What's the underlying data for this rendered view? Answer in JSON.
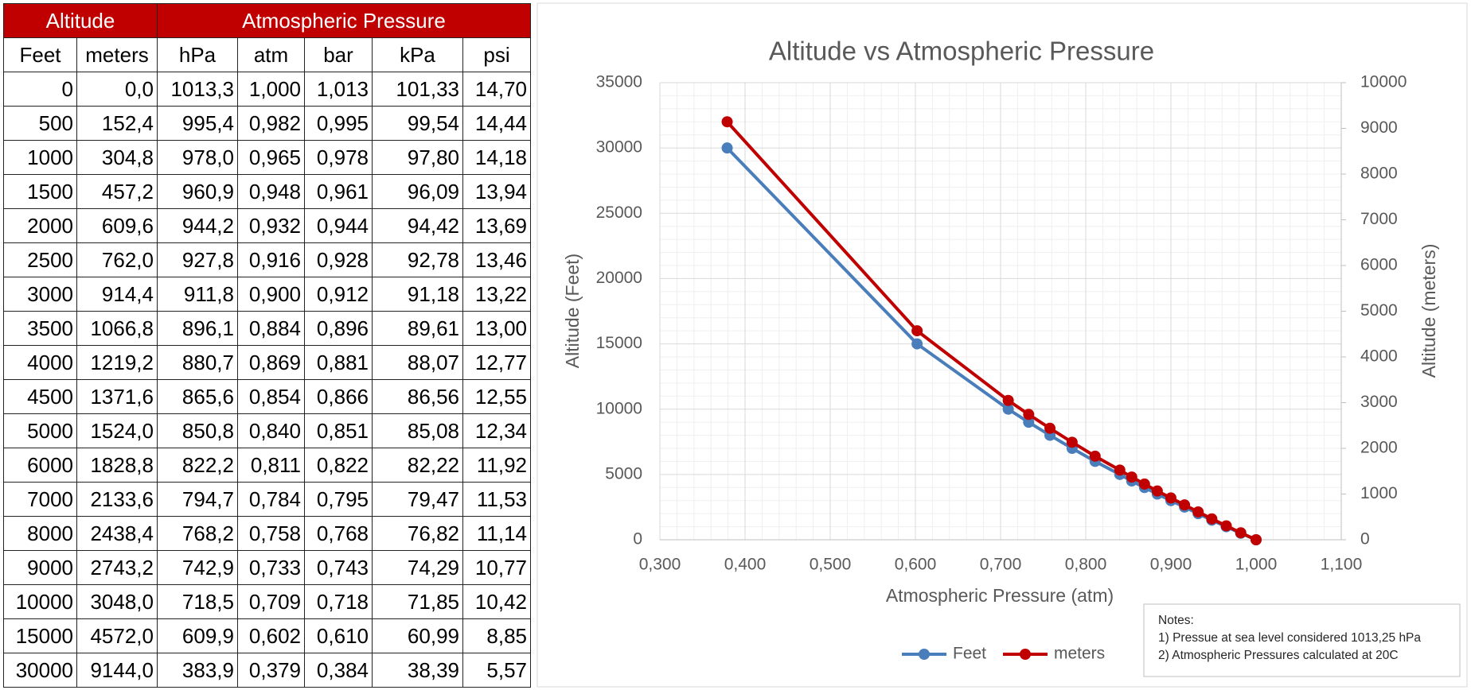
{
  "table": {
    "groups": [
      "Altitude",
      "Atmospheric Pressure"
    ],
    "columns": [
      "Feet",
      "meters",
      "hPa",
      "atm",
      "bar",
      "kPa",
      "psi"
    ],
    "rows": [
      [
        "0",
        "0,0",
        "1013,3",
        "1,000",
        "1,013",
        "101,33",
        "14,70"
      ],
      [
        "500",
        "152,4",
        "995,4",
        "0,982",
        "0,995",
        "99,54",
        "14,44"
      ],
      [
        "1000",
        "304,8",
        "978,0",
        "0,965",
        "0,978",
        "97,80",
        "14,18"
      ],
      [
        "1500",
        "457,2",
        "960,9",
        "0,948",
        "0,961",
        "96,09",
        "13,94"
      ],
      [
        "2000",
        "609,6",
        "944,2",
        "0,932",
        "0,944",
        "94,42",
        "13,69"
      ],
      [
        "2500",
        "762,0",
        "927,8",
        "0,916",
        "0,928",
        "92,78",
        "13,46"
      ],
      [
        "3000",
        "914,4",
        "911,8",
        "0,900",
        "0,912",
        "91,18",
        "13,22"
      ],
      [
        "3500",
        "1066,8",
        "896,1",
        "0,884",
        "0,896",
        "89,61",
        "13,00"
      ],
      [
        "4000",
        "1219,2",
        "880,7",
        "0,869",
        "0,881",
        "88,07",
        "12,77"
      ],
      [
        "4500",
        "1371,6",
        "865,6",
        "0,854",
        "0,866",
        "86,56",
        "12,55"
      ],
      [
        "5000",
        "1524,0",
        "850,8",
        "0,840",
        "0,851",
        "85,08",
        "12,34"
      ],
      [
        "6000",
        "1828,8",
        "822,2",
        "0,811",
        "0,822",
        "82,22",
        "11,92"
      ],
      [
        "7000",
        "2133,6",
        "794,7",
        "0,784",
        "0,795",
        "79,47",
        "11,53"
      ],
      [
        "8000",
        "2438,4",
        "768,2",
        "0,758",
        "0,768",
        "76,82",
        "11,14"
      ],
      [
        "9000",
        "2743,2",
        "742,9",
        "0,733",
        "0,743",
        "74,29",
        "10,77"
      ],
      [
        "10000",
        "3048,0",
        "718,5",
        "0,709",
        "0,718",
        "71,85",
        "10,42"
      ],
      [
        "15000",
        "4572,0",
        "609,9",
        "0,602",
        "0,610",
        "60,99",
        "8,85"
      ],
      [
        "30000",
        "9144,0",
        "383,9",
        "0,379",
        "0,384",
        "38,39",
        "5,57"
      ]
    ]
  },
  "chart_data": {
    "type": "line",
    "title": "Altitude vs Atmospheric Pressure",
    "x_label": "Atmospheric Pressure (atm)",
    "y_label": "Altitude (Feet)",
    "y2_label": "Altitude (meters)",
    "x": [
      1.0,
      0.982,
      0.965,
      0.948,
      0.932,
      0.916,
      0.9,
      0.884,
      0.869,
      0.854,
      0.84,
      0.811,
      0.784,
      0.758,
      0.733,
      0.709,
      0.602,
      0.379
    ],
    "series": [
      {
        "name": "Feet",
        "color": "#4a7ebb",
        "values": [
          0,
          500,
          1000,
          1500,
          2000,
          2500,
          3000,
          3500,
          4000,
          4500,
          5000,
          6000,
          7000,
          8000,
          9000,
          10000,
          15000,
          30000
        ]
      },
      {
        "name": "meters",
        "color": "#c00000",
        "axis": "y2",
        "values": [
          0,
          152.4,
          304.8,
          457.2,
          609.6,
          762.0,
          914.4,
          1066.8,
          1219.2,
          1371.6,
          1524.0,
          1828.8,
          2133.6,
          2438.4,
          2743.2,
          3048.0,
          4572.0,
          9144.0
        ]
      }
    ],
    "xlim": [
      0.3,
      1.1
    ],
    "xticks": [
      {
        "value": 0.3,
        "label": "0,300"
      },
      {
        "value": 0.4,
        "label": "0,400"
      },
      {
        "value": 0.5,
        "label": "0,500"
      },
      {
        "value": 0.6,
        "label": "0,600"
      },
      {
        "value": 0.7,
        "label": "0,700"
      },
      {
        "value": 0.8,
        "label": "0,800"
      },
      {
        "value": 0.9,
        "label": "0,900"
      },
      {
        "value": 1.0,
        "label": "1,000"
      },
      {
        "value": 1.1,
        "label": "1,100"
      }
    ],
    "ylim": [
      0,
      35000
    ],
    "yticks": [
      0,
      5000,
      10000,
      15000,
      20000,
      25000,
      30000,
      35000
    ],
    "y2lim": [
      0,
      10000
    ],
    "y2ticks": [
      0,
      1000,
      2000,
      3000,
      4000,
      5000,
      6000,
      7000,
      8000,
      9000,
      10000
    ],
    "grid": true,
    "legend": "bottom",
    "notes": [
      "Notes:",
      "1) Pressue at sea level considered 1013,25 hPa",
      "2) Atmospheric Pressures calculated at 20C"
    ]
  }
}
